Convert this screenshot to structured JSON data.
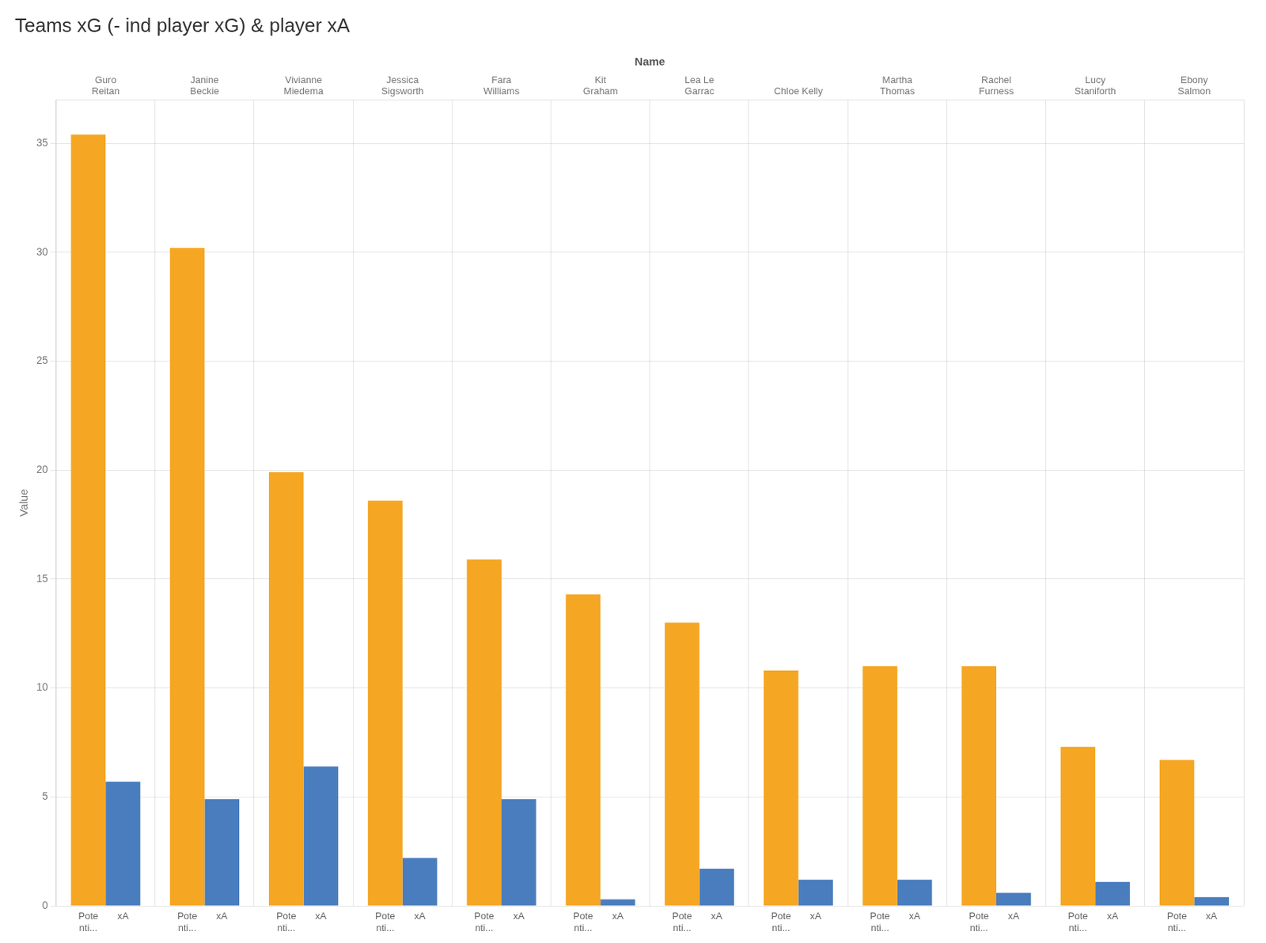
{
  "chart_data": {
    "type": "bar",
    "title": "Teams xG (- ind player xG) & player xA",
    "xlabel": "Name",
    "ylabel": "Value",
    "categories": [
      "Guro\nReitan",
      "Janine\nBeckie",
      "Vivianne\nMiedema",
      "Jessica\nSigsworth",
      "Fara\nWilliams",
      "Kit\nGraham",
      "Lea Le\nGarrac",
      "Chloe Kelly",
      "Martha\nThomas",
      "Rachel\nFurness",
      "Lucy\nStaniforth",
      "Ebony\nSalmon"
    ],
    "series": [
      {
        "name": "Pote\nnti...",
        "color": "#f5a623",
        "values": [
          35.4,
          30.2,
          19.9,
          18.6,
          15.9,
          14.3,
          13.0,
          10.8,
          11.0,
          11.0,
          7.3,
          6.7
        ]
      },
      {
        "name": "xA",
        "color": "#4a7dbd",
        "values": [
          5.7,
          4.9,
          6.4,
          2.2,
          4.9,
          0.3,
          1.7,
          1.2,
          1.2,
          0.6,
          1.1,
          0.4
        ]
      }
    ],
    "ylim": [
      0,
      37
    ],
    "yticks": [
      0,
      5,
      10,
      15,
      20,
      25,
      30,
      35
    ],
    "grid": true
  }
}
